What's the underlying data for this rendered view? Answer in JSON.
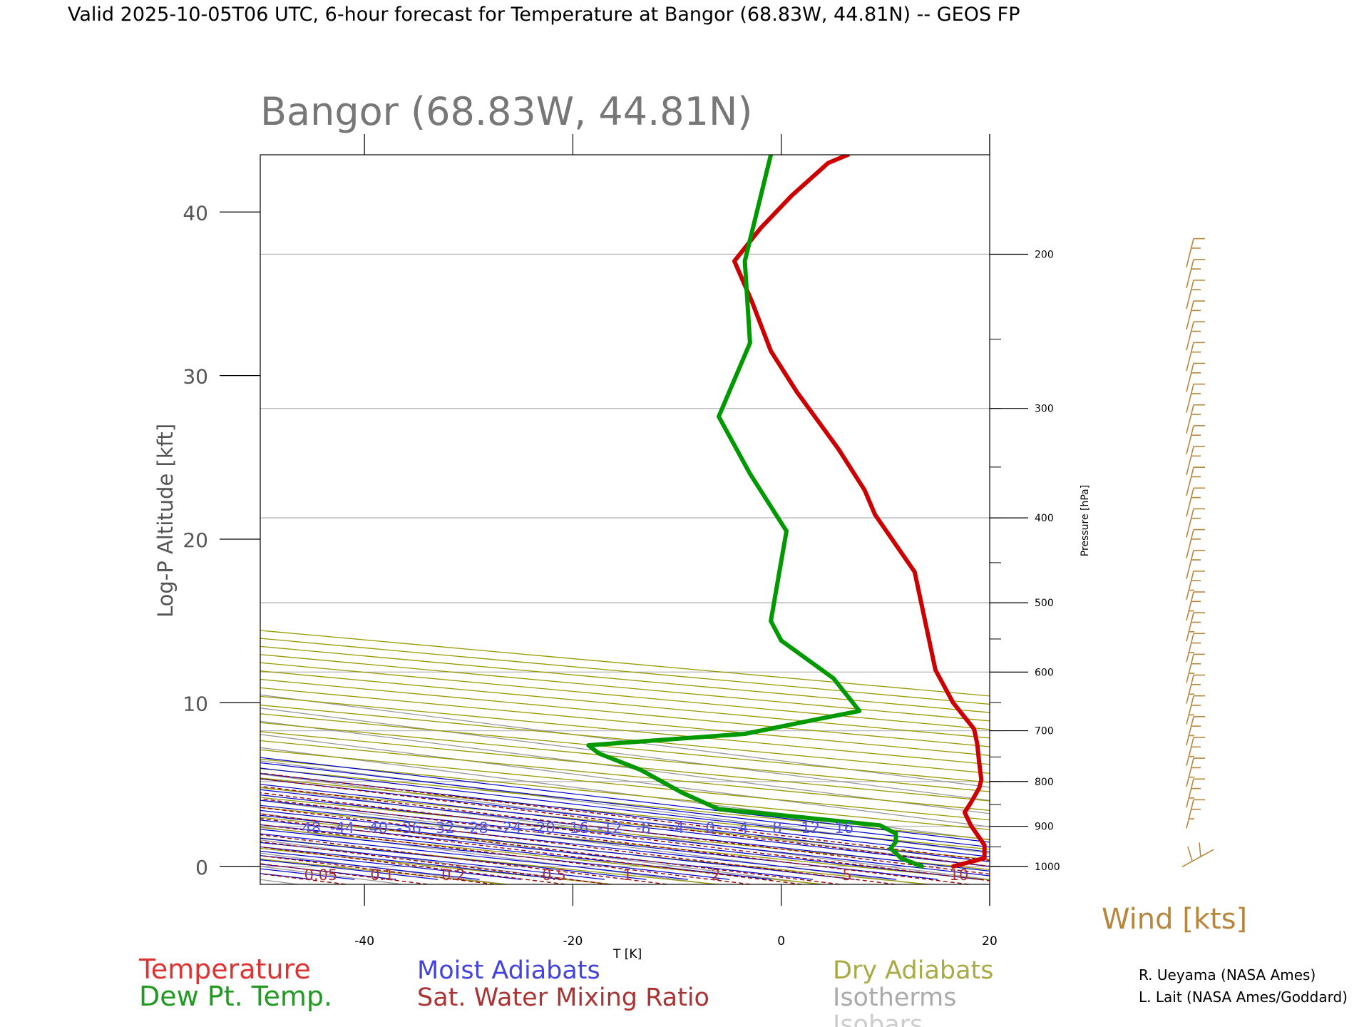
{
  "page": {
    "header": "Valid 2025-10-05T06 UTC, 6-hour forecast for Temperature at Bangor (68.83W, 44.81N) -- GEOS FP"
  },
  "chart_data": {
    "type": "line",
    "title": "Bangor (68.83W, 44.81N)",
    "xlabel": "T [K]",
    "ylabel": "Log-P Altitude [kft]",
    "y2label": "Pressure [hPa]",
    "xlim": [
      -50,
      20
    ],
    "ylim": [
      -1.1,
      43.5
    ],
    "x_ticks": [
      -40,
      -20,
      0,
      20
    ],
    "y_ticks": [
      0,
      10,
      20,
      30,
      40
    ],
    "pressure_ticks": [
      {
        "p": 1000,
        "label": "1000"
      },
      {
        "p": 900,
        "label": "900"
      },
      {
        "p": 800,
        "label": "800"
      },
      {
        "p": 700,
        "label": "700"
      },
      {
        "p": 600,
        "label": "600"
      },
      {
        "p": 500,
        "label": "500"
      },
      {
        "p": 400,
        "label": "400"
      },
      {
        "p": 300,
        "label": "300"
      },
      {
        "p": 200,
        "label": "200"
      }
    ],
    "moist_adiabat_labels": [
      "-48",
      "-44",
      "-40",
      "-36",
      "-32",
      "-28",
      "-24",
      "-20",
      "-16",
      "-12",
      "-8",
      "-4",
      "0",
      "4",
      "8",
      "12",
      "16"
    ],
    "mixing_ratio_labels": [
      "0.05",
      "0.1",
      "0.2",
      "0.5",
      "1",
      "2",
      "5",
      "10"
    ],
    "series": [
      {
        "name": "Temperature",
        "color": "#cc0000",
        "points": [
          [
            16.5,
            0
          ],
          [
            19.5,
            0.5
          ],
          [
            19.5,
            1.3
          ],
          [
            18.2,
            2.5
          ],
          [
            17.6,
            3.3
          ],
          [
            18.2,
            3.9
          ],
          [
            19.0,
            4.8
          ],
          [
            19.2,
            5.3
          ],
          [
            19.0,
            6.3
          ],
          [
            18.8,
            7.5
          ],
          [
            18.5,
            8.4
          ],
          [
            16.5,
            10.0
          ],
          [
            14.8,
            12.0
          ],
          [
            12.8,
            18.0
          ],
          [
            9.0,
            21.5
          ],
          [
            8.0,
            23.0
          ],
          [
            5.5,
            25.5
          ],
          [
            1.5,
            29.0
          ],
          [
            -1.0,
            31.5
          ],
          [
            -2.8,
            34.5
          ],
          [
            -4.5,
            37.0
          ],
          [
            -2.0,
            39.0
          ],
          [
            1.0,
            41.0
          ],
          [
            4.5,
            43.0
          ],
          [
            6.4,
            43.5
          ]
        ]
      },
      {
        "name": "Dew Pt. Temp.",
        "color": "#009900",
        "points": [
          [
            13.5,
            0
          ],
          [
            11.5,
            0.5
          ],
          [
            10.5,
            1.1
          ],
          [
            11.0,
            1.5
          ],
          [
            11.0,
            2.0
          ],
          [
            9.5,
            2.5
          ],
          [
            2.0,
            3.0
          ],
          [
            -6.0,
            3.5
          ],
          [
            -9.5,
            4.5
          ],
          [
            -13.5,
            5.9
          ],
          [
            -17.5,
            6.9
          ],
          [
            -18.5,
            7.4
          ],
          [
            -3.5,
            8.1
          ],
          [
            3.5,
            9.0
          ],
          [
            7.5,
            9.5
          ],
          [
            5.0,
            11.5
          ],
          [
            0.0,
            13.8
          ],
          [
            -1.0,
            15.0
          ],
          [
            0.5,
            20.5
          ],
          [
            -3.0,
            24.0
          ],
          [
            -6.0,
            27.5
          ],
          [
            -4.0,
            30.5
          ],
          [
            -3.0,
            32.0
          ],
          [
            -3.5,
            37.0
          ],
          [
            -1.0,
            43.5
          ]
        ]
      }
    ],
    "wind_barb_speeds": [
      10,
      10,
      10,
      10,
      10,
      10,
      10,
      10,
      10,
      10,
      10,
      10,
      10,
      10,
      10,
      10,
      15,
      15,
      15,
      15,
      15,
      15,
      15,
      15,
      15,
      15,
      15,
      15,
      10
    ],
    "legend": {
      "temperature": "Temperature",
      "dewpoint": "Dew Pt. Temp.",
      "moist": "Moist Adiabats",
      "mixing": "Sat. Water Mixing Ratio",
      "dry": "Dry Adiabats",
      "isotherms": "Isotherms",
      "isobars": "Isobars"
    },
    "wind_label": "Wind [kts]",
    "credits": [
      "R. Ueyama (NASA Ames)",
      "L. Lait (NASA Ames/Goddard)"
    ],
    "colors": {
      "temperature": "#cc0000",
      "dewpoint": "#009900",
      "moist": "#0000cc",
      "mixing": "#990000",
      "dry": "#999900",
      "isotherm": "#999999",
      "isobar": "#bbbbbb",
      "wind": "#b8863b"
    }
  }
}
